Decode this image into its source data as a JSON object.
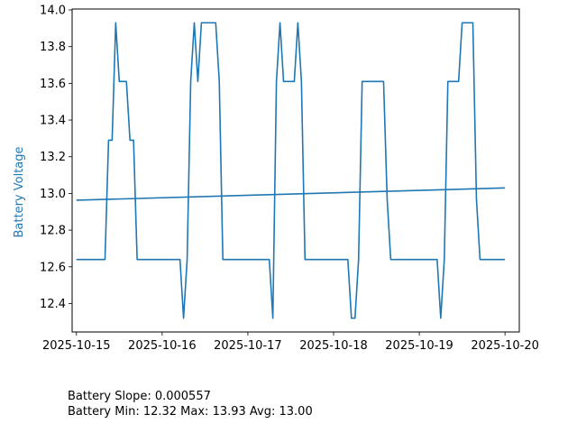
{
  "chart_data": {
    "type": "line",
    "ylabel": "Battery Voltage",
    "xlabel": "",
    "ylim": [
      12.245,
      14.005
    ],
    "xlim": [
      "2025-10-14T22:48",
      "2025-10-20T04:00"
    ],
    "grid": false,
    "x_ticks": [
      "2025-10-15",
      "2025-10-16",
      "2025-10-17",
      "2025-10-18",
      "2025-10-19",
      "2025-10-20"
    ],
    "y_ticks": [
      "12.4",
      "12.6",
      "12.8",
      "13.0",
      "13.2",
      "13.4",
      "13.6",
      "13.8",
      "14.0"
    ],
    "series": [
      {
        "color": "#1f77b4",
        "x": [
          "2025-10-15T00:00",
          "2025-10-15T08:00",
          "2025-10-15T09:00",
          "2025-10-15T10:00",
          "2025-10-15T11:00",
          "2025-10-15T12:00",
          "2025-10-15T13:00",
          "2025-10-15T14:00",
          "2025-10-15T15:00",
          "2025-10-15T16:00",
          "2025-10-15T17:00",
          "2025-10-15T18:00",
          "2025-10-16T05:00",
          "2025-10-16T06:00",
          "2025-10-16T07:00",
          "2025-10-16T08:00",
          "2025-10-16T09:00",
          "2025-10-16T10:00",
          "2025-10-16T11:00",
          "2025-10-16T15:00",
          "2025-10-16T16:00",
          "2025-10-16T17:00",
          "2025-10-16T18:00",
          "2025-10-17T06:00",
          "2025-10-17T07:00",
          "2025-10-17T08:00",
          "2025-10-17T09:00",
          "2025-10-17T10:00",
          "2025-10-17T13:00",
          "2025-10-17T14:00",
          "2025-10-17T15:00",
          "2025-10-17T16:00",
          "2025-10-18T04:00",
          "2025-10-18T05:00",
          "2025-10-18T06:00",
          "2025-10-18T07:00",
          "2025-10-18T08:00",
          "2025-10-18T14:00",
          "2025-10-18T15:00",
          "2025-10-18T16:00",
          "2025-10-19T05:00",
          "2025-10-19T06:00",
          "2025-10-19T07:00",
          "2025-10-19T08:00",
          "2025-10-19T11:00",
          "2025-10-19T12:00",
          "2025-10-19T15:00",
          "2025-10-19T16:00",
          "2025-10-19T17:00",
          "2025-10-19T23:59"
        ],
        "values": [
          12.64,
          12.64,
          13.29,
          13.29,
          13.93,
          13.61,
          13.61,
          13.61,
          13.29,
          13.29,
          12.64,
          12.64,
          12.64,
          12.32,
          12.64,
          13.61,
          13.93,
          13.61,
          13.93,
          13.93,
          13.61,
          12.64,
          12.64,
          12.64,
          12.32,
          13.61,
          13.93,
          13.61,
          13.61,
          13.93,
          13.61,
          12.64,
          12.64,
          12.32,
          12.32,
          12.64,
          13.61,
          13.61,
          12.97,
          12.64,
          12.64,
          12.32,
          12.64,
          13.61,
          13.61,
          13.93,
          13.93,
          12.97,
          12.64,
          12.64
        ]
      },
      {
        "color": "#1f77b4",
        "x": [
          "2025-10-15T00:00",
          "2025-10-19T23:59"
        ],
        "values": [
          12.963,
          13.03
        ]
      }
    ]
  },
  "footer": {
    "slope": "Battery Slope: 0.000557",
    "stats": "Battery Min: 12.32 Max: 13.93 Avg: 13.00"
  }
}
